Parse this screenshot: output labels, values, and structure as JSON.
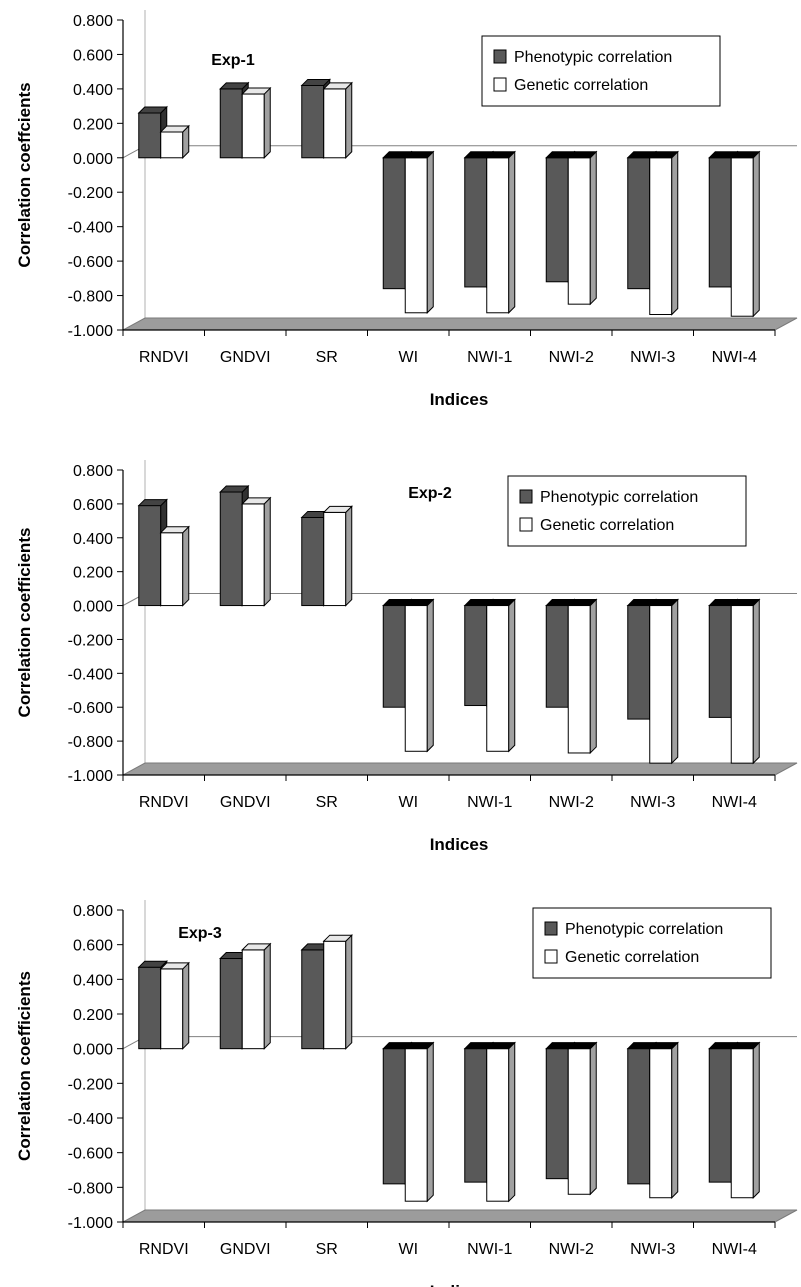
{
  "chart_data": [
    {
      "type": "bar",
      "title": "Exp-1",
      "xlabel": "Indices",
      "ylabel": "Correlation coeffcients",
      "ylim": [
        -1.0,
        0.8
      ],
      "yticks": [
        "0.800",
        "0.600",
        "0.400",
        "0.200",
        "0.000",
        "-0.200",
        "-0.400",
        "-0.600",
        "-0.800",
        "-1.000"
      ],
      "categories": [
        "RNDVI",
        "GNDVI",
        "SR",
        "WI",
        "NWI-1",
        "NWI-2",
        "NWI-3",
        "NWI-4"
      ],
      "series": [
        {
          "name": "Phenotypic correlation",
          "values": [
            0.26,
            0.4,
            0.42,
            -0.76,
            -0.75,
            -0.72,
            -0.76,
            -0.75
          ]
        },
        {
          "name": "Genetic correlation",
          "values": [
            0.15,
            0.37,
            0.4,
            -0.9,
            -0.9,
            -0.85,
            -0.91,
            -0.92
          ]
        }
      ],
      "legend_position": "top-right",
      "colors": {
        "phenotypic": "#595959",
        "genetic": "#ffffff"
      }
    },
    {
      "type": "bar",
      "title": "Exp-2",
      "xlabel": "Indices",
      "ylabel": "Correlation coefficients",
      "ylim": [
        -1.0,
        0.8
      ],
      "yticks": [
        "0.800",
        "0.600",
        "0.400",
        "0.200",
        "0.000",
        "-0.200",
        "-0.400",
        "-0.600",
        "-0.800",
        "-1.000"
      ],
      "categories": [
        "RNDVI",
        "GNDVI",
        "SR",
        "WI",
        "NWI-1",
        "NWI-2",
        "NWI-3",
        "NWI-4"
      ],
      "series": [
        {
          "name": "Phenotypic correlation",
          "values": [
            0.59,
            0.67,
            0.52,
            -0.6,
            -0.59,
            -0.6,
            -0.67,
            -0.66
          ]
        },
        {
          "name": "Genetic correlation",
          "values": [
            0.43,
            0.6,
            0.55,
            -0.86,
            -0.86,
            -0.87,
            -0.93,
            -0.93
          ]
        }
      ],
      "legend_position": "top-right",
      "colors": {
        "phenotypic": "#595959",
        "genetic": "#ffffff"
      }
    },
    {
      "type": "bar",
      "title": "Exp-3",
      "xlabel": "Indices",
      "ylabel": "Correlation coefficients",
      "ylim": [
        -1.0,
        0.8
      ],
      "yticks": [
        "0.800",
        "0.600",
        "0.400",
        "0.200",
        "0.000",
        "-0.200",
        "-0.400",
        "-0.600",
        "-0.800",
        "-1.000"
      ],
      "categories": [
        "RNDVI",
        "GNDVI",
        "SR",
        "WI",
        "NWI-1",
        "NWI-2",
        "NWI-3",
        "NWI-4"
      ],
      "series": [
        {
          "name": "Phenotypic correlation",
          "values": [
            0.47,
            0.52,
            0.57,
            -0.78,
            -0.77,
            -0.75,
            -0.78,
            -0.77
          ]
        },
        {
          "name": "Genetic correlation",
          "values": [
            0.46,
            0.57,
            0.62,
            -0.88,
            -0.88,
            -0.84,
            -0.86,
            -0.86
          ]
        }
      ],
      "legend_position": "top-right",
      "colors": {
        "phenotypic": "#595959",
        "genetic": "#ffffff"
      }
    }
  ]
}
